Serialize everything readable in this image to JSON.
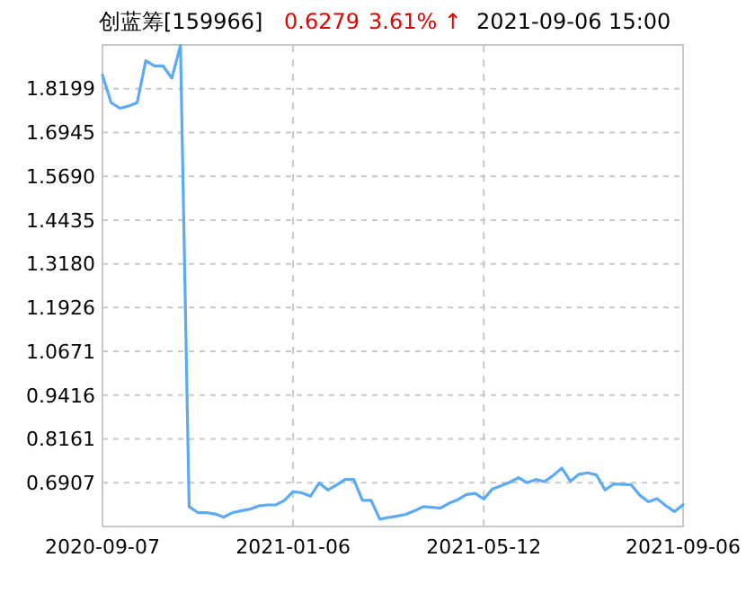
{
  "chart_data": {
    "type": "line",
    "title": "创蓝筹[159966]",
    "annotations": [
      "0.6279",
      "3.61% ↑",
      "2021-09-06 15:00"
    ],
    "categories": [
      "2020-09-07",
      null,
      null,
      null,
      null,
      null,
      null,
      null,
      null,
      null,
      null,
      null,
      null,
      null,
      null,
      null,
      null,
      null,
      null,
      null,
      null,
      null,
      "2021-01-06",
      null,
      null,
      null,
      null,
      null,
      null,
      null,
      null,
      null,
      null,
      null,
      null,
      null,
      null,
      null,
      null,
      null,
      null,
      null,
      null,
      null,
      "2021-05-12",
      null,
      null,
      null,
      null,
      null,
      null,
      null,
      null,
      null,
      null,
      null,
      null,
      null,
      null,
      null,
      null,
      null,
      null,
      null,
      null,
      null,
      null,
      "2021-09-06"
    ],
    "series": [
      {
        "color": "#5aaaf5",
        "values": [
          1.859,
          1.78,
          1.764,
          1.77,
          1.78,
          1.9,
          1.885,
          1.885,
          1.85,
          1.944,
          0.622,
          0.605,
          0.605,
          0.601,
          0.592,
          0.605,
          0.61,
          0.615,
          0.624,
          0.627,
          0.627,
          0.64,
          0.665,
          0.662,
          0.652,
          0.69,
          0.67,
          0.684,
          0.7,
          0.7,
          0.64,
          0.64,
          0.586,
          0.591,
          0.595,
          0.6,
          0.61,
          0.622,
          0.62,
          0.618,
          0.632,
          0.642,
          0.657,
          0.66,
          0.644,
          0.673,
          0.682,
          0.692,
          0.705,
          0.691,
          0.7,
          0.694,
          0.711,
          0.733,
          0.695,
          0.715,
          0.719,
          0.713,
          0.67,
          0.687,
          0.686,
          0.685,
          0.655,
          0.636,
          0.645,
          0.625,
          0.608,
          0.6279
        ]
      }
    ],
    "ylim": [
      0.5652,
      1.9454
    ],
    "yticks": [
      0.6907,
      0.8161,
      0.9416,
      1.0671,
      1.1926,
      {
        "value": 1.318,
        "label": "1.3180"
      },
      1.4435,
      {
        "value": 1.569,
        "label": "1.5690"
      },
      1.6945,
      1.8199
    ],
    "grid": true,
    "line_style": "solid",
    "marker": "none"
  }
}
